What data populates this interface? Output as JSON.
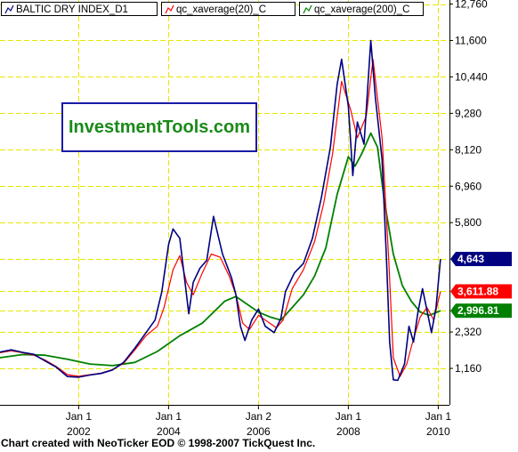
{
  "chart_data": {
    "type": "line",
    "legend": [
      {
        "label": "BALTIC DRY INDEX_D1",
        "color": "#000080"
      },
      {
        "label": "qc_xaverage(20)_C",
        "color": "#ff0000"
      },
      {
        "label": "qc_xaverage(200)_C",
        "color": "#008000"
      }
    ],
    "watermark": "InvestmentTools.com",
    "footer": "Chart created with NeoTicker EOD © 1998-2007 TickQuest Inc.",
    "y_ticks": [
      "12,760",
      "11,600",
      "10,440",
      "9,280",
      "8,120",
      "6,960",
      "5,800",
      "4,643",
      "3,611.88",
      "2,996.81",
      "2,320",
      "1,160"
    ],
    "ylim": [
      0,
      12760
    ],
    "x_ticks": [
      {
        "line1": "Jan 1",
        "line2": "2002",
        "x": 2002.0
      },
      {
        "line1": "Jan 1",
        "line2": "2004",
        "x": 2004.0
      },
      {
        "line1": "Jan 2",
        "line2": "2006",
        "x": 2006.0
      },
      {
        "line1": "Jan 1",
        "line2": "2008",
        "x": 2008.0
      },
      {
        "line1": "Jan 1",
        "line2": "2010",
        "x": 2010.0
      }
    ],
    "xlim": [
      2000.25,
      2010.25
    ],
    "gridlines": "dashed-yellow",
    "last_values": [
      {
        "series": "BALTIC DRY INDEX_D1",
        "label": "4,643",
        "value": 4643,
        "bg": "#000080",
        "fg": "#ffffff"
      },
      {
        "series": "qc_xaverage(20)_C",
        "label": "3,611.88",
        "value": 3611.88,
        "bg": "#ff0000",
        "fg": "#ffffff"
      },
      {
        "series": "qc_xaverage(200)_C",
        "label": "2,996.81",
        "value": 2996.81,
        "bg": "#008000",
        "fg": "#ffffff"
      }
    ],
    "series": [
      {
        "name": "BALTIC DRY INDEX_D1",
        "color": "#000080",
        "points": [
          [
            2000.25,
            1680
          ],
          [
            2000.5,
            1750
          ],
          [
            2000.75,
            1670
          ],
          [
            2001.0,
            1610
          ],
          [
            2001.25,
            1400
          ],
          [
            2001.5,
            1200
          ],
          [
            2001.75,
            900
          ],
          [
            2002.0,
            880
          ],
          [
            2002.25,
            950
          ],
          [
            2002.5,
            1000
          ],
          [
            2002.75,
            1110
          ],
          [
            2003.0,
            1350
          ],
          [
            2003.25,
            1800
          ],
          [
            2003.5,
            2300
          ],
          [
            2003.7,
            2700
          ],
          [
            2003.85,
            3600
          ],
          [
            2004.0,
            5100
          ],
          [
            2004.1,
            5600
          ],
          [
            2004.25,
            5300
          ],
          [
            2004.45,
            2900
          ],
          [
            2004.55,
            3900
          ],
          [
            2004.7,
            4350
          ],
          [
            2004.85,
            4600
          ],
          [
            2005.0,
            6000
          ],
          [
            2005.2,
            4800
          ],
          [
            2005.4,
            4050
          ],
          [
            2005.5,
            3500
          ],
          [
            2005.6,
            2500
          ],
          [
            2005.7,
            2050
          ],
          [
            2005.85,
            2700
          ],
          [
            2006.0,
            3050
          ],
          [
            2006.15,
            2500
          ],
          [
            2006.35,
            2300
          ],
          [
            2006.5,
            2750
          ],
          [
            2006.6,
            3600
          ],
          [
            2006.8,
            4200
          ],
          [
            2007.0,
            4500
          ],
          [
            2007.2,
            5300
          ],
          [
            2007.4,
            6600
          ],
          [
            2007.6,
            8200
          ],
          [
            2007.75,
            10200
          ],
          [
            2007.85,
            11000
          ],
          [
            2008.0,
            9500
          ],
          [
            2008.1,
            7300
          ],
          [
            2008.2,
            9000
          ],
          [
            2008.35,
            8300
          ],
          [
            2008.5,
            11600
          ],
          [
            2008.6,
            9800
          ],
          [
            2008.75,
            7800
          ],
          [
            2008.85,
            4600
          ],
          [
            2008.92,
            2000
          ],
          [
            2009.0,
            800
          ],
          [
            2009.1,
            780
          ],
          [
            2009.25,
            1300
          ],
          [
            2009.35,
            2500
          ],
          [
            2009.45,
            2000
          ],
          [
            2009.55,
            2950
          ],
          [
            2009.65,
            3700
          ],
          [
            2009.75,
            3000
          ],
          [
            2009.85,
            2300
          ],
          [
            2009.95,
            3100
          ],
          [
            2010.05,
            4640
          ]
        ]
      },
      {
        "name": "qc_xaverage(20)_C",
        "color": "#ff0000",
        "points": [
          [
            2000.25,
            1660
          ],
          [
            2000.5,
            1720
          ],
          [
            2000.75,
            1660
          ],
          [
            2001.0,
            1580
          ],
          [
            2001.25,
            1430
          ],
          [
            2001.5,
            1220
          ],
          [
            2001.75,
            960
          ],
          [
            2002.0,
            910
          ],
          [
            2002.25,
            960
          ],
          [
            2002.5,
            1010
          ],
          [
            2002.75,
            1120
          ],
          [
            2003.0,
            1320
          ],
          [
            2003.25,
            1750
          ],
          [
            2003.5,
            2200
          ],
          [
            2003.75,
            2500
          ],
          [
            2003.9,
            3100
          ],
          [
            2004.1,
            4300
          ],
          [
            2004.25,
            4750
          ],
          [
            2004.4,
            3900
          ],
          [
            2004.55,
            3500
          ],
          [
            2004.75,
            4200
          ],
          [
            2004.95,
            4800
          ],
          [
            2005.15,
            4700
          ],
          [
            2005.35,
            4100
          ],
          [
            2005.5,
            3500
          ],
          [
            2005.65,
            2600
          ],
          [
            2005.8,
            2400
          ],
          [
            2006.0,
            2850
          ],
          [
            2006.2,
            2650
          ],
          [
            2006.4,
            2450
          ],
          [
            2006.55,
            2700
          ],
          [
            2006.75,
            3700
          ],
          [
            2007.0,
            4300
          ],
          [
            2007.25,
            5200
          ],
          [
            2007.45,
            6400
          ],
          [
            2007.65,
            8000
          ],
          [
            2007.85,
            10300
          ],
          [
            2008.05,
            9400
          ],
          [
            2008.2,
            8500
          ],
          [
            2008.4,
            9200
          ],
          [
            2008.55,
            11000
          ],
          [
            2008.75,
            8500
          ],
          [
            2008.9,
            4600
          ],
          [
            2009.0,
            1500
          ],
          [
            2009.15,
            900
          ],
          [
            2009.3,
            1300
          ],
          [
            2009.45,
            2100
          ],
          [
            2009.6,
            2800
          ],
          [
            2009.75,
            3100
          ],
          [
            2009.9,
            2700
          ],
          [
            2010.05,
            3612
          ]
        ]
      },
      {
        "name": "qc_xaverage(200)_C",
        "color": "#008000",
        "points": [
          [
            2000.25,
            1500
          ],
          [
            2000.75,
            1600
          ],
          [
            2001.25,
            1580
          ],
          [
            2001.75,
            1450
          ],
          [
            2002.25,
            1300
          ],
          [
            2002.75,
            1250
          ],
          [
            2003.25,
            1350
          ],
          [
            2003.75,
            1700
          ],
          [
            2004.25,
            2200
          ],
          [
            2004.75,
            2600
          ],
          [
            2005.25,
            3300
          ],
          [
            2005.5,
            3450
          ],
          [
            2005.75,
            3200
          ],
          [
            2006.0,
            2950
          ],
          [
            2006.25,
            2800
          ],
          [
            2006.5,
            2700
          ],
          [
            2006.75,
            3100
          ],
          [
            2007.0,
            3500
          ],
          [
            2007.25,
            4100
          ],
          [
            2007.5,
            5000
          ],
          [
            2007.75,
            6700
          ],
          [
            2008.0,
            7900
          ],
          [
            2008.15,
            7600
          ],
          [
            2008.3,
            8000
          ],
          [
            2008.5,
            8650
          ],
          [
            2008.65,
            8200
          ],
          [
            2008.8,
            6500
          ],
          [
            2009.0,
            4800
          ],
          [
            2009.2,
            3800
          ],
          [
            2009.4,
            3300
          ],
          [
            2009.6,
            2950
          ],
          [
            2009.8,
            2850
          ],
          [
            2010.05,
            2997
          ]
        ]
      }
    ]
  }
}
